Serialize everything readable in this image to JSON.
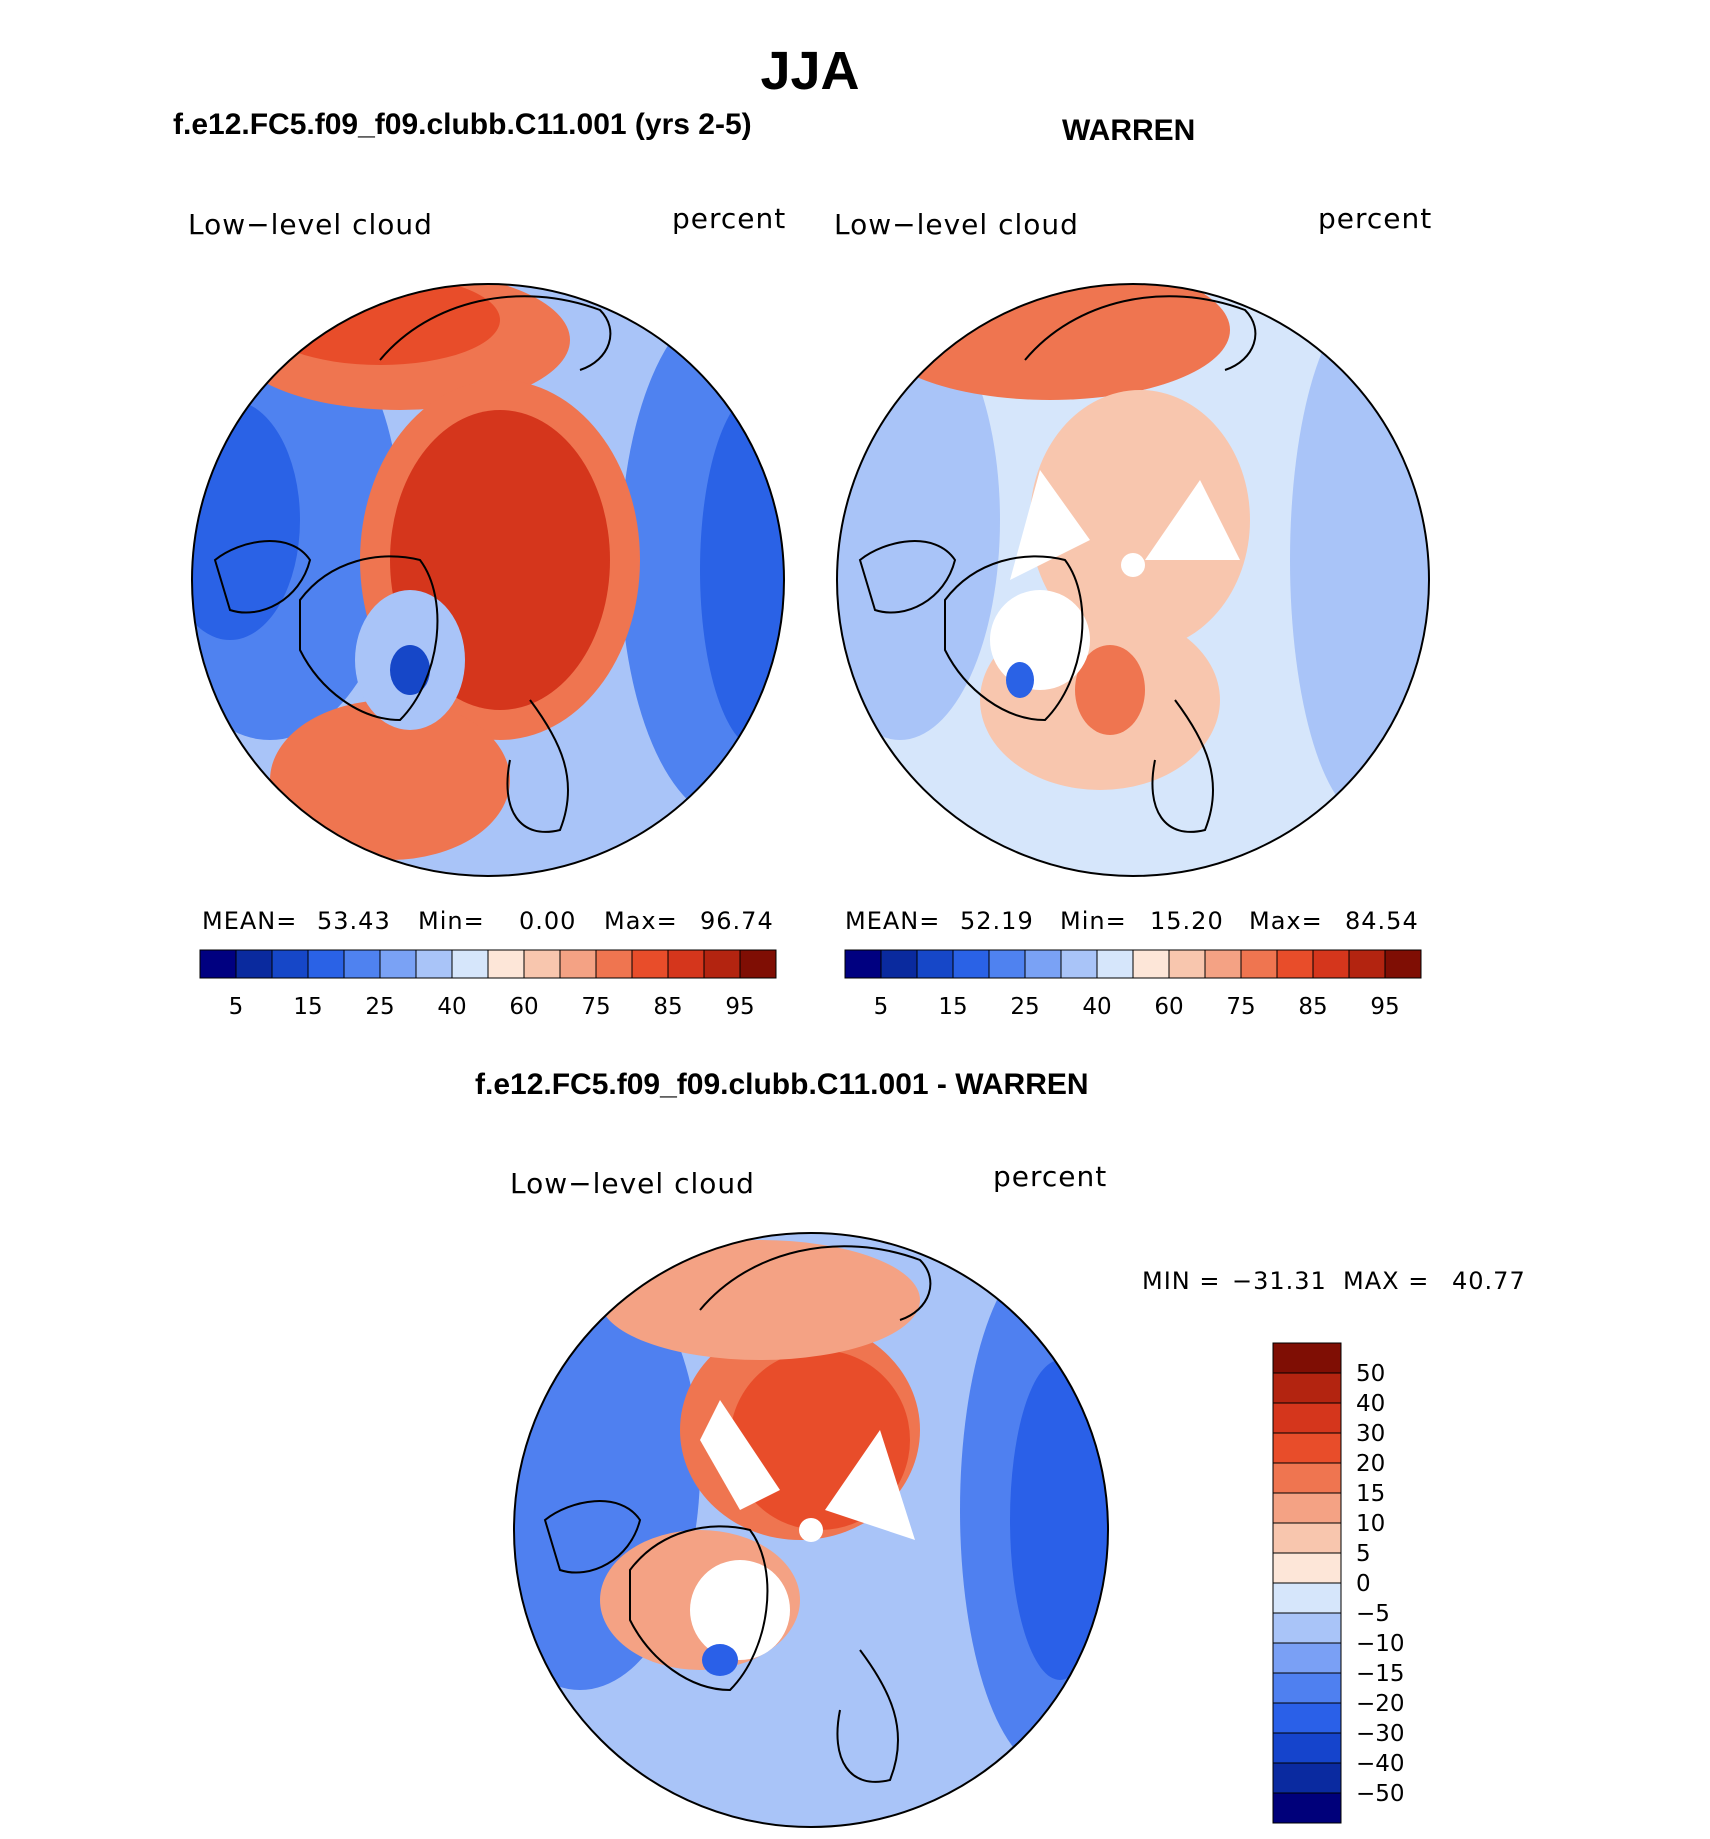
{
  "chart_data": {
    "type": "polar-contour-map",
    "season_title": "JJA",
    "colors": {
      "abs": [
        "#000080",
        "#0a2a9e",
        "#1647c8",
        "#2a62e6",
        "#4f82f0",
        "#7aa2f5",
        "#a9c4f8",
        "#d6e6fb",
        "#fde6d8",
        "#f8c6ae",
        "#f4a284",
        "#ef7550",
        "#e84d2a",
        "#d5361c",
        "#b32410",
        "#7f0e04"
      ],
      "diff": [
        "#00007a",
        "#0a2aa0",
        "#1544cc",
        "#2a60e8",
        "#4f80f0",
        "#7aa0f5",
        "#a9c4f8",
        "#d6e6fb",
        "#fde6d8",
        "#f8c6ae",
        "#f4a284",
        "#ef7550",
        "#e84d2a",
        "#d5361c",
        "#b32410",
        "#7f0e04"
      ]
    },
    "panels": [
      {
        "title": "f.e12.FC5.f09_f09.clubb.C11.001 (yrs 2-5)",
        "variable": "Low−level cloud",
        "units": "percent",
        "mean_label": "MEAN=",
        "mean": "53.43",
        "min_label": "Min=",
        "min": "0.00",
        "max_label": "Max=",
        "max": "96.74",
        "colorbar_labels": [
          "5",
          "15",
          "25",
          "40",
          "60",
          "75",
          "85",
          "95"
        ]
      },
      {
        "title": "WARREN",
        "variable": "Low−level cloud",
        "units": "percent",
        "mean_label": "MEAN=",
        "mean": "52.19",
        "min_label": "Min=",
        "min": "15.20",
        "max_label": "Max=",
        "max": "84.54",
        "colorbar_labels": [
          "5",
          "15",
          "25",
          "40",
          "60",
          "75",
          "85",
          "95"
        ]
      }
    ],
    "difference": {
      "title": "f.e12.FC5.f09_f09.clubb.C11.001 - WARREN",
      "variable": "Low−level cloud",
      "units": "percent",
      "min_label": "MIN =",
      "min": "−31.31",
      "max_label": "MAX =",
      "max": "40.77",
      "colorbar_labels": [
        "50",
        "40",
        "30",
        "20",
        "15",
        "10",
        "5",
        "0",
        "−5",
        "−10",
        "−15",
        "−20",
        "−30",
        "−40",
        "−50"
      ]
    }
  }
}
